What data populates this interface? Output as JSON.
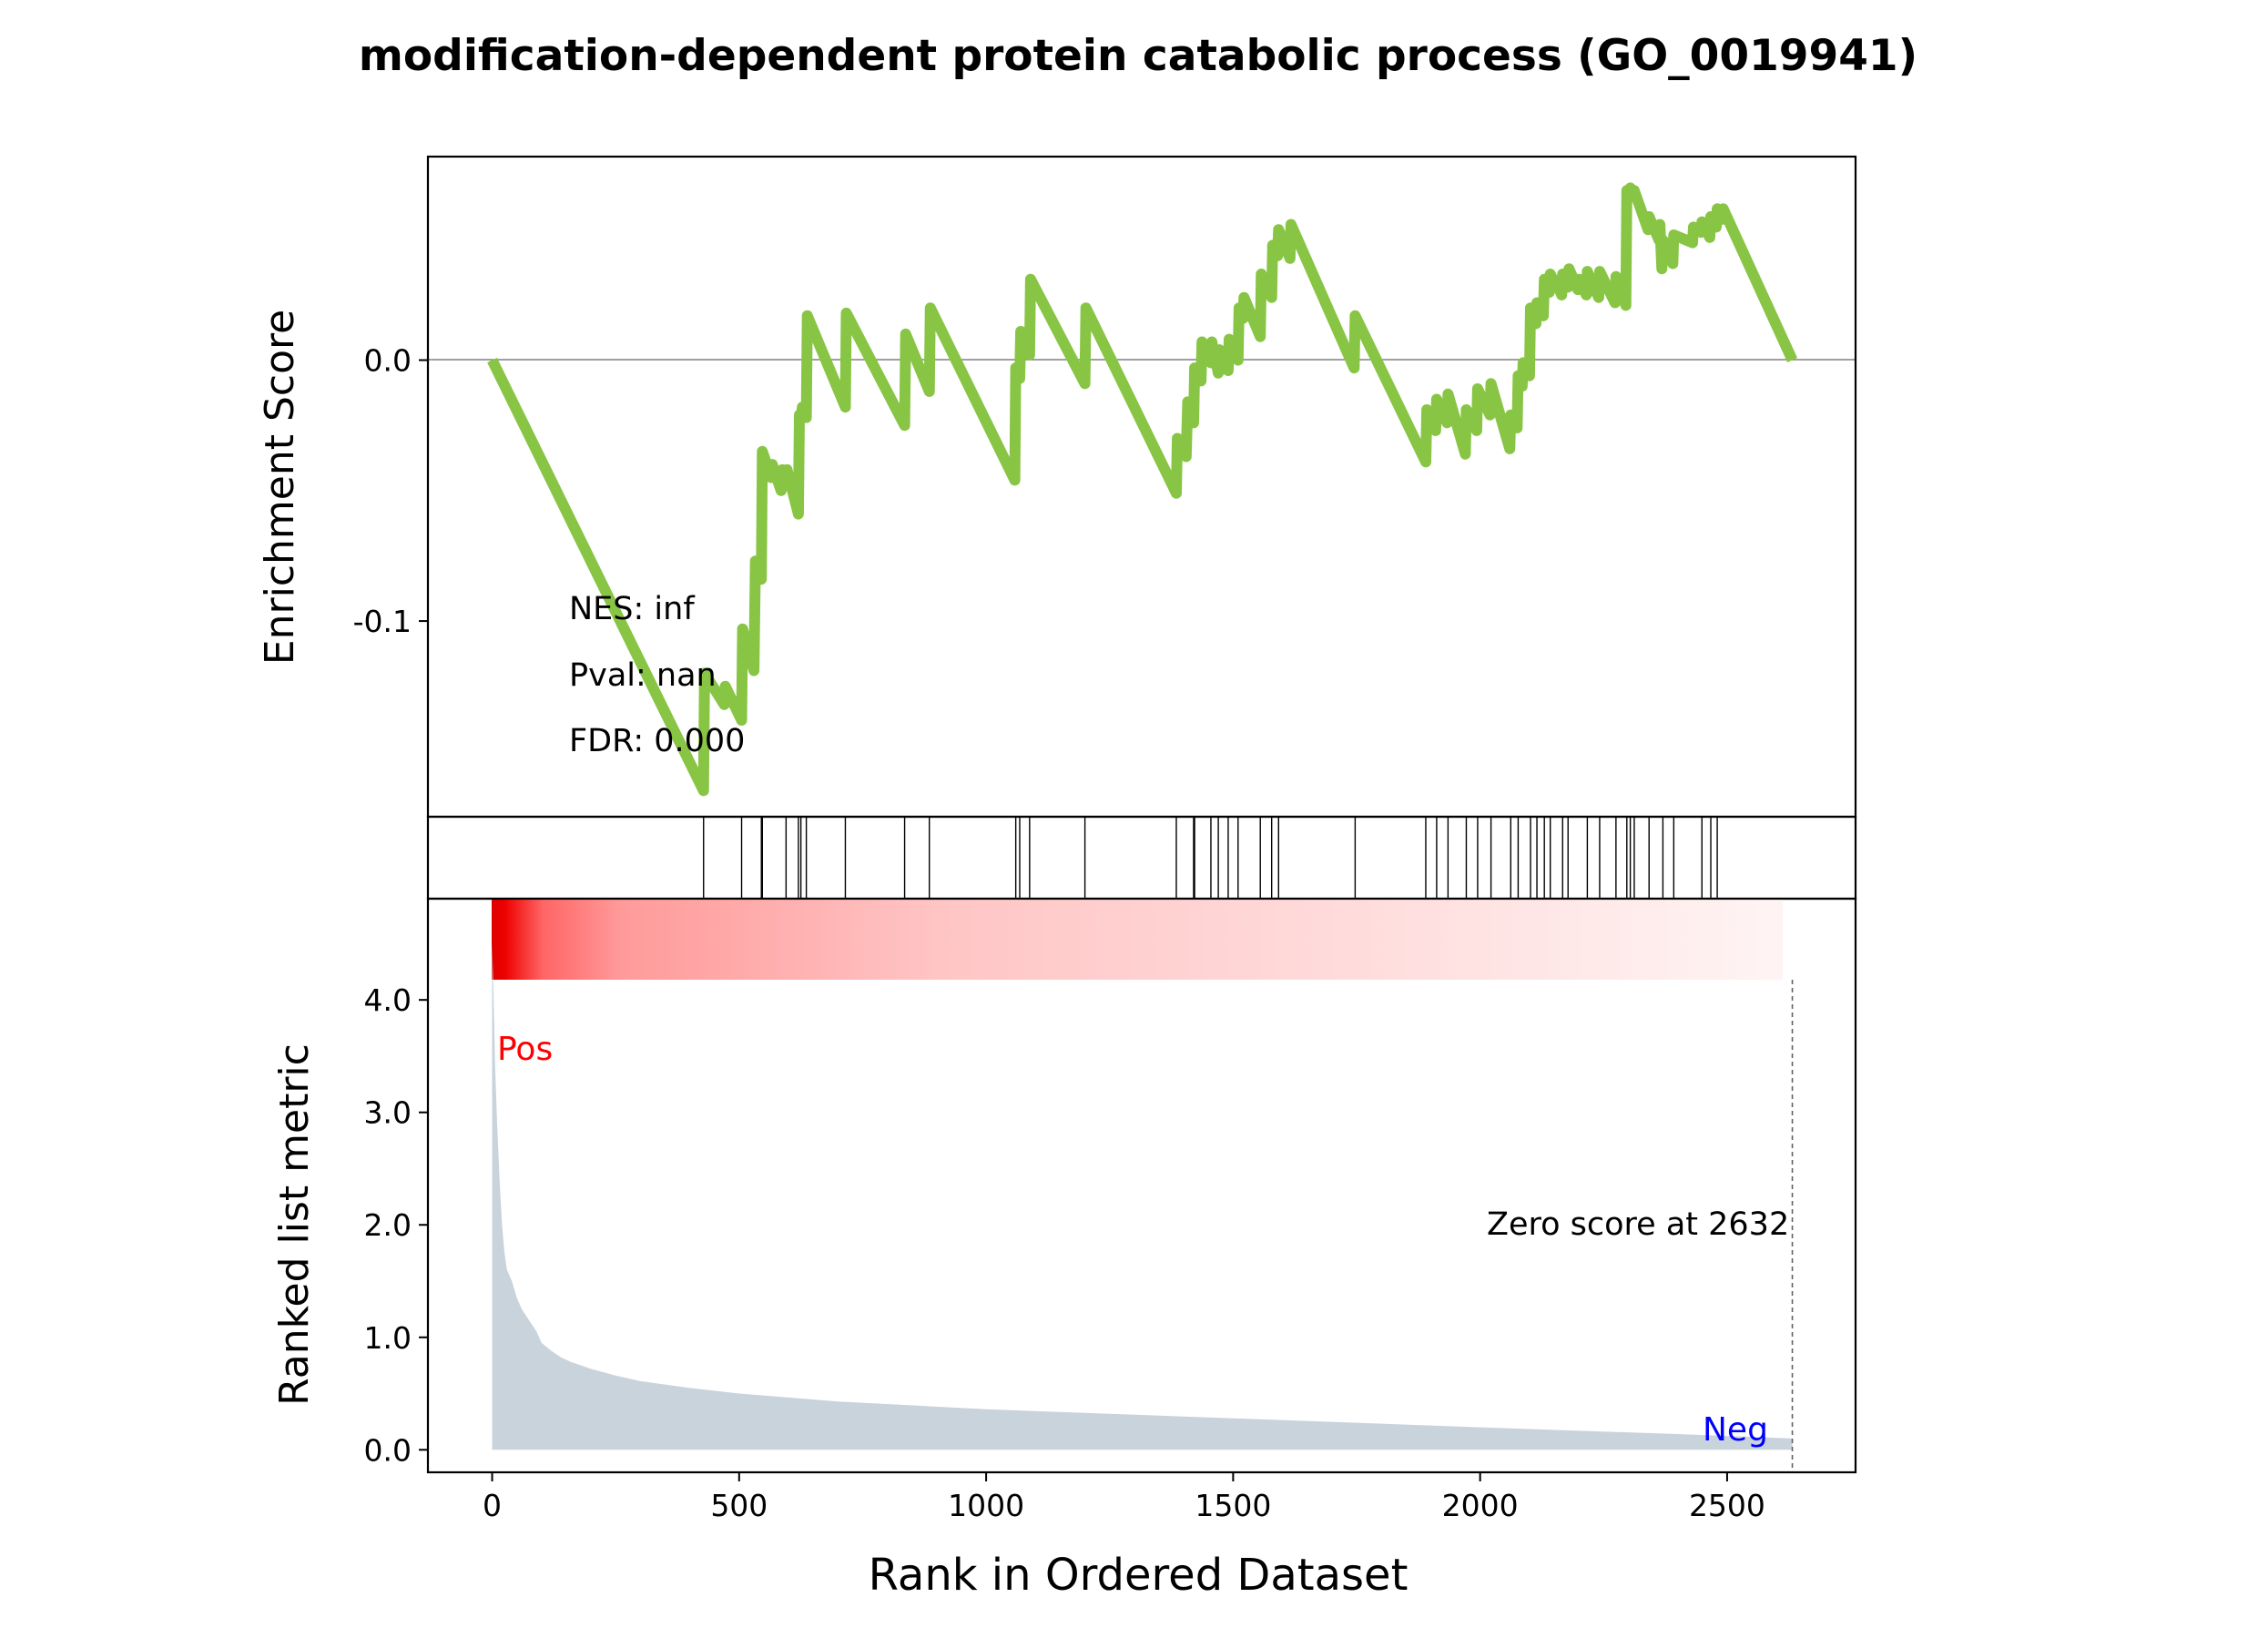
{
  "chart_data": [
    {
      "type": "line",
      "panel": "enrichment",
      "title": "modification-dependent protein catabolic process (GO_0019941)",
      "ylabel": "Enrichment Score",
      "xlim": [
        -130,
        2760
      ],
      "ylim": [
        -0.175,
        0.078
      ],
      "y_ticks": [
        0.0,
        -0.1
      ],
      "y_tick_labels": [
        "0.0",
        "-0.1"
      ],
      "zero_line": true,
      "color": "#88C544",
      "stats": [
        "NES: inf",
        "Pval: nan",
        "FDR: 0.000"
      ],
      "x": [
        0,
        428,
        430,
        470,
        472,
        505,
        507,
        530,
        533,
        545,
        547,
        565,
        567,
        585,
        587,
        595,
        597,
        620,
        622,
        625,
        628,
        636,
        638,
        715,
        717,
        835,
        837,
        885,
        887,
        1058,
        1060,
        1068,
        1070,
        1088,
        1090,
        1200,
        1202,
        1385,
        1387,
        1405,
        1408,
        1420,
        1422,
        1435,
        1437,
        1455,
        1457,
        1470,
        1472,
        1490,
        1492,
        1510,
        1512,
        1520,
        1522,
        1555,
        1557,
        1578,
        1580,
        1590,
        1592,
        1615,
        1617,
        1745,
        1747,
        1890,
        1892,
        1910,
        1912,
        1933,
        1935,
        1970,
        1972,
        1993,
        1995,
        2020,
        2022,
        2060,
        2062,
        2075,
        2077,
        2085,
        2087,
        2100,
        2102,
        2113,
        2115,
        2128,
        2130,
        2140,
        2142,
        2152,
        2154,
        2165,
        2167,
        2178,
        2180,
        2198,
        2200,
        2215,
        2217,
        2240,
        2242,
        2273,
        2275,
        2295,
        2297,
        2302,
        2304,
        2310,
        2312,
        2340,
        2342,
        2362,
        2364,
        2368,
        2370,
        2390,
        2392,
        2430,
        2432,
        2447,
        2449,
        2465,
        2467,
        2478,
        2480,
        2490,
        2492,
        2632
      ],
      "y": [
        0.0,
        -0.165,
        -0.12,
        -0.132,
        -0.125,
        -0.138,
        -0.103,
        -0.119,
        -0.077,
        -0.084,
        -0.035,
        -0.045,
        -0.04,
        -0.05,
        -0.042,
        -0.046,
        -0.042,
        -0.059,
        -0.021,
        -0.022,
        -0.018,
        -0.022,
        0.017,
        -0.018,
        0.018,
        -0.025,
        0.01,
        -0.012,
        0.02,
        -0.046,
        -0.003,
        -0.007,
        0.011,
        0.002,
        0.031,
        -0.009,
        0.02,
        -0.051,
        -0.03,
        -0.037,
        -0.016,
        -0.024,
        -0.003,
        -0.008,
        0.007,
        -0.001,
        0.007,
        -0.005,
        0.004,
        -0.004,
        0.008,
        0.0,
        0.02,
        0.016,
        0.024,
        0.009,
        0.033,
        0.024,
        0.044,
        0.04,
        0.05,
        0.039,
        0.052,
        -0.003,
        0.017,
        -0.039,
        -0.019,
        -0.027,
        -0.015,
        -0.024,
        -0.013,
        -0.036,
        -0.019,
        -0.027,
        -0.011,
        -0.021,
        -0.009,
        -0.034,
        -0.021,
        -0.026,
        -0.006,
        -0.01,
        -0.001,
        -0.006,
        0.02,
        0.014,
        0.022,
        0.017,
        0.031,
        0.026,
        0.033,
        0.029,
        0.03,
        0.025,
        0.033,
        0.028,
        0.035,
        0.027,
        0.031,
        0.025,
        0.034,
        0.024,
        0.034,
        0.022,
        0.032,
        0.021,
        0.065,
        0.063,
        0.066,
        0.063,
        0.065,
        0.05,
        0.055,
        0.046,
        0.052,
        0.035,
        0.046,
        0.037,
        0.048,
        0.045,
        0.051,
        0.049,
        0.053,
        0.047,
        0.055,
        0.051,
        0.058,
        0.054,
        0.058,
        0.0
      ]
    },
    {
      "type": "bar",
      "panel": "hits",
      "description": "gene set hit positions (vertical tick marks)",
      "xlim": [
        -130,
        2760
      ],
      "x": [
        428,
        505,
        545,
        547,
        595,
        620,
        625,
        636,
        715,
        835,
        885,
        1060,
        1068,
        1088,
        1200,
        1385,
        1420,
        1422,
        1455,
        1470,
        1490,
        1510,
        1555,
        1578,
        1592,
        1747,
        1890,
        1912,
        1935,
        1972,
        1995,
        2022,
        2062,
        2077,
        2102,
        2115,
        2130,
        2142,
        2167,
        2178,
        2217,
        2242,
        2275,
        2297,
        2304,
        2312,
        2342,
        2370,
        2392,
        2449,
        2467,
        2480
      ]
    },
    {
      "type": "area",
      "panel": "ranked-metric",
      "ylabel": "Ranked list metric",
      "xlabel": "Rank in Ordered Dataset",
      "xlim": [
        -130,
        2760
      ],
      "ylim": [
        -0.2,
        4.9
      ],
      "x_ticks": [
        0,
        500,
        1000,
        1500,
        2000,
        2500
      ],
      "x_tick_labels": [
        "0",
        "500",
        "1000",
        "1500",
        "2000",
        "2500"
      ],
      "y_ticks": [
        0.0,
        1.0,
        2.0,
        3.0,
        4.0
      ],
      "y_tick_labels": [
        "0.0",
        "1.0",
        "2.0",
        "3.0",
        "4.0"
      ],
      "fill_color": "#C9D3DB",
      "pos_label": "Pos",
      "neg_label": "Neg",
      "pos_color": "#FF0000",
      "neg_color": "#0000FF",
      "zero_score_text": "Zero score at 2632",
      "zero_score_x": 2632,
      "x": [
        0,
        3,
        6,
        10,
        15,
        20,
        25,
        30,
        40,
        50,
        60,
        75,
        90,
        100,
        120,
        140,
        160,
        200,
        250,
        300,
        400,
        500,
        700,
        1000,
        1500,
        2000,
        2400,
        2632
      ],
      "y": [
        4.5,
        4.0,
        3.4,
        2.9,
        2.4,
        2.0,
        1.75,
        1.6,
        1.5,
        1.35,
        1.25,
        1.15,
        1.05,
        0.95,
        0.88,
        0.82,
        0.78,
        0.72,
        0.66,
        0.61,
        0.55,
        0.5,
        0.43,
        0.36,
        0.28,
        0.2,
        0.14,
        0.1
      ],
      "colorbar": {
        "from": "#DD0000",
        "to": "#FFFFFF",
        "x_start": 0,
        "x_end": 2632
      }
    }
  ]
}
